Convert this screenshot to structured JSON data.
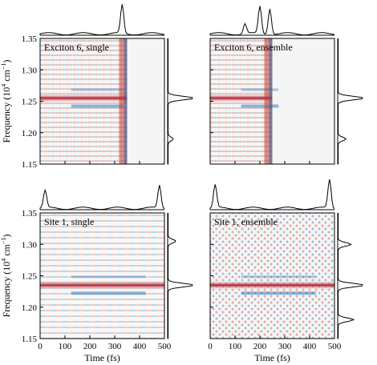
{
  "chart_data": [
    {
      "type": "heatmap",
      "title": "Exciton 6, single",
      "xlim": [
        0,
        500
      ],
      "ylim": [
        1.15,
        1.35
      ],
      "xticks": [],
      "yticks": [
        "1.15",
        "1.20",
        "1.25",
        "1.30",
        "1.35"
      ],
      "ylabel": "Frequency (10",
      "ylabel_sup": "4",
      "ylabel_unit": " cm",
      "ylabel_unit_sup": "−1",
      "ylabel_close": ")",
      "dominant_frequency": 1.255,
      "signal_end_time": 350,
      "top_projection_peaks": [
        {
          "time": 330,
          "height": 1.0
        }
      ],
      "side_projection_peaks": [
        {
          "freq": 1.255,
          "height": 1.0
        },
        {
          "freq": 1.19,
          "height": 0.2
        }
      ]
    },
    {
      "type": "heatmap",
      "title": "Exciton 6, ensemble",
      "xlim": [
        0,
        500
      ],
      "ylim": [
        1.15,
        1.35
      ],
      "xticks": [],
      "yticks": [],
      "dominant_frequency": 1.255,
      "signal_end_time": 250,
      "top_projection_peaks": [
        {
          "time": 200,
          "height": 0.95
        },
        {
          "time": 240,
          "height": 0.9
        },
        {
          "time": 140,
          "height": 0.35
        }
      ],
      "side_projection_peaks": [
        {
          "freq": 1.255,
          "height": 1.0
        },
        {
          "freq": 1.19,
          "height": 0.3
        }
      ]
    },
    {
      "type": "heatmap",
      "title": "Site 1, single",
      "xlim": [
        0,
        500
      ],
      "ylim": [
        1.15,
        1.35
      ],
      "xticks": [
        "0",
        "100",
        "200",
        "300",
        "400",
        "500"
      ],
      "yticks": [
        "1.15",
        "1.20",
        "1.25",
        "1.30",
        "1.35"
      ],
      "xlabel": "Time (fs)",
      "ylabel": "Frequency (10",
      "ylabel_sup": "4",
      "ylabel_unit": " cm",
      "ylabel_unit_sup": "−1",
      "ylabel_close": ")",
      "dominant_frequency": 1.235,
      "signal_end_time": 500,
      "top_projection_peaks": [
        {
          "time": 20,
          "height": 0.6
        },
        {
          "time": 480,
          "height": 0.8
        }
      ],
      "side_projection_peaks": [
        {
          "freq": 1.235,
          "height": 1.0
        },
        {
          "freq": 1.305,
          "height": 0.3
        }
      ]
    },
    {
      "type": "heatmap",
      "title": "Site 1, ensemble",
      "xlim": [
        0,
        500
      ],
      "ylim": [
        1.15,
        1.35
      ],
      "xticks": [
        "0",
        "100",
        "200",
        "300",
        "400",
        "500"
      ],
      "yticks": [],
      "xlabel": "Time (fs)",
      "dominant_frequency": 1.235,
      "signal_end_time": 500,
      "top_projection_peaks": [
        {
          "time": 20,
          "height": 0.8
        },
        {
          "time": 480,
          "height": 1.0
        }
      ],
      "side_projection_peaks": [
        {
          "freq": 1.235,
          "height": 1.0
        },
        {
          "freq": 1.18,
          "height": 0.6
        },
        {
          "freq": 1.3,
          "height": 0.5
        }
      ]
    }
  ]
}
